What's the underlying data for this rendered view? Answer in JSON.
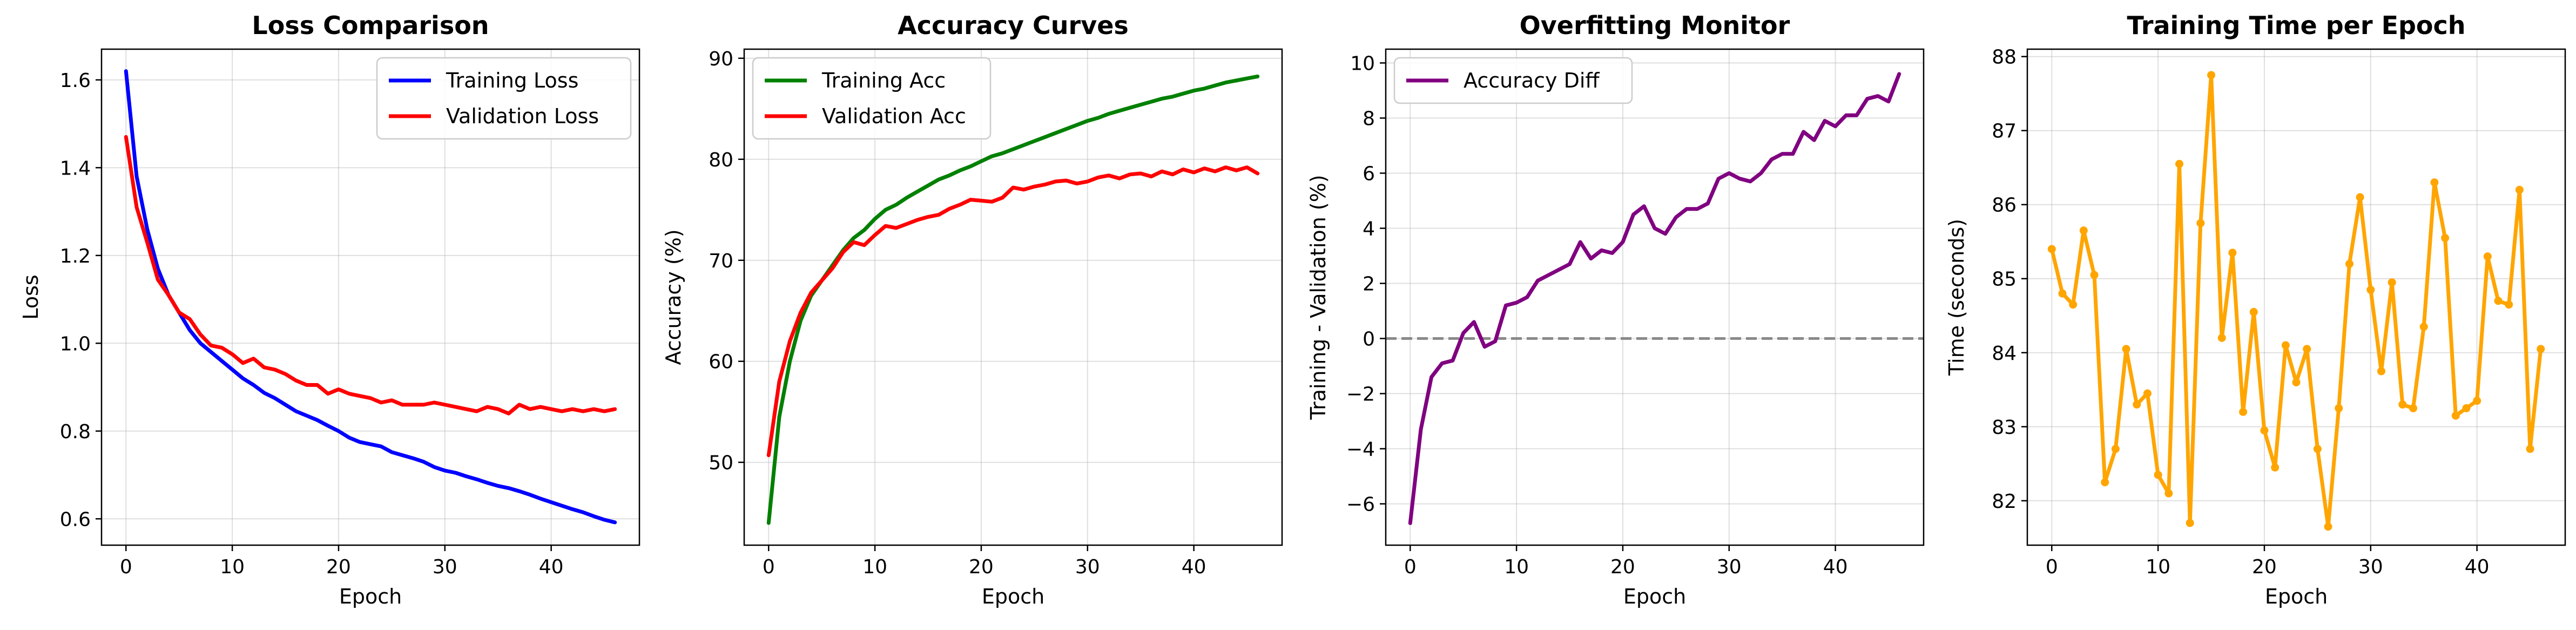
{
  "chart_data": [
    {
      "type": "line",
      "title": "Loss Comparison",
      "xlabel": "Epoch",
      "ylabel": "Loss",
      "xlim": [
        -2.3,
        48.3
      ],
      "ylim": [
        0.54,
        1.67
      ],
      "xticks": [
        0,
        10,
        20,
        30,
        40
      ],
      "yticks": [
        0.6,
        0.8,
        1.0,
        1.2,
        1.4,
        1.6
      ],
      "ytick_labels": [
        "0.6",
        "0.8",
        "1.0",
        "1.2",
        "1.4",
        "1.6"
      ],
      "grid": true,
      "legend": "upper right",
      "series": [
        {
          "name": "Training Loss",
          "color": "#0000ff",
          "values": [
            1.62,
            1.38,
            1.26,
            1.17,
            1.11,
            1.07,
            1.03,
            1.0,
            0.98,
            0.96,
            0.94,
            0.92,
            0.905,
            0.887,
            0.875,
            0.86,
            0.845,
            0.835,
            0.825,
            0.812,
            0.8,
            0.785,
            0.775,
            0.77,
            0.765,
            0.752,
            0.745,
            0.738,
            0.73,
            0.718,
            0.71,
            0.705,
            0.697,
            0.69,
            0.682,
            0.675,
            0.67,
            0.663,
            0.655,
            0.646,
            0.638,
            0.63,
            0.622,
            0.615,
            0.606,
            0.598,
            0.592
          ]
        },
        {
          "name": "Validation Loss",
          "color": "#ff0000",
          "values": [
            1.47,
            1.31,
            1.23,
            1.145,
            1.11,
            1.07,
            1.055,
            1.02,
            0.995,
            0.99,
            0.975,
            0.955,
            0.965,
            0.945,
            0.94,
            0.93,
            0.915,
            0.905,
            0.905,
            0.885,
            0.895,
            0.885,
            0.88,
            0.875,
            0.865,
            0.87,
            0.86,
            0.86,
            0.86,
            0.865,
            0.86,
            0.855,
            0.85,
            0.845,
            0.855,
            0.85,
            0.84,
            0.86,
            0.85,
            0.855,
            0.85,
            0.845,
            0.85,
            0.845,
            0.85,
            0.845,
            0.85
          ]
        }
      ]
    },
    {
      "type": "line",
      "title": "Accuracy Curves",
      "xlabel": "Epoch",
      "ylabel": "Accuracy (%)",
      "xlim": [
        -2.3,
        48.3
      ],
      "ylim": [
        41.8,
        90.9
      ],
      "xticks": [
        0,
        10,
        20,
        30,
        40
      ],
      "yticks": [
        50,
        60,
        70,
        80,
        90
      ],
      "ytick_labels": [
        "50",
        "60",
        "70",
        "80",
        "90"
      ],
      "grid": true,
      "legend": "upper left",
      "series": [
        {
          "name": "Training Acc",
          "color": "#008000",
          "values": [
            44,
            54.5,
            60,
            64,
            66.5,
            68,
            69.5,
            71,
            72.2,
            73,
            74.1,
            75,
            75.5,
            76.2,
            76.8,
            77.4,
            78,
            78.4,
            78.9,
            79.3,
            79.8,
            80.3,
            80.6,
            81,
            81.4,
            81.8,
            82.2,
            82.6,
            83,
            83.4,
            83.8,
            84.1,
            84.5,
            84.8,
            85.1,
            85.4,
            85.7,
            86,
            86.2,
            86.5,
            86.8,
            87,
            87.3,
            87.6,
            87.8,
            88,
            88.2
          ]
        },
        {
          "name": "Validation Acc",
          "color": "#ff0000",
          "values": [
            50.7,
            58,
            62,
            64.8,
            66.8,
            68,
            69.2,
            70.8,
            71.8,
            71.5,
            72.5,
            73.4,
            73.2,
            73.6,
            74,
            74.3,
            74.5,
            75.1,
            75.5,
            76,
            75.9,
            75.8,
            76.2,
            77.2,
            77,
            77.3,
            77.5,
            77.8,
            77.9,
            77.6,
            77.8,
            78.2,
            78.4,
            78.1,
            78.5,
            78.6,
            78.3,
            78.8,
            78.5,
            79,
            78.7,
            79.1,
            78.8,
            79.2,
            78.9,
            79.2,
            78.6
          ]
        }
      ]
    },
    {
      "type": "line",
      "title": "Overfitting Monitor",
      "xlabel": "Epoch",
      "ylabel": "Training - Validation (%)",
      "xlim": [
        -2.3,
        48.3
      ],
      "ylim": [
        -7.5,
        10.5
      ],
      "xticks": [
        0,
        10,
        20,
        30,
        40
      ],
      "yticks": [
        -6,
        -4,
        -2,
        0,
        2,
        4,
        6,
        8,
        10
      ],
      "ytick_labels": [
        "−6",
        "−4",
        "−2",
        "0",
        "2",
        "4",
        "6",
        "8",
        "10"
      ],
      "grid": true,
      "legend": "upper left",
      "reference_line": {
        "y": 0,
        "color": "#808080",
        "style": "dashed"
      },
      "series": [
        {
          "name": "Accuracy Diff",
          "color": "#800080",
          "values": [
            -6.7,
            -3.3,
            -1.4,
            -0.9,
            -0.8,
            0.2,
            0.6,
            -0.3,
            -0.1,
            1.2,
            1.3,
            1.5,
            2.1,
            2.3,
            2.5,
            2.7,
            3.5,
            2.9,
            3.2,
            3.1,
            3.5,
            4.5,
            4.8,
            4.0,
            3.8,
            4.4,
            4.7,
            4.7,
            4.9,
            5.8,
            6.0,
            5.8,
            5.7,
            6.0,
            6.5,
            6.7,
            6.7,
            7.5,
            7.2,
            7.9,
            7.7,
            8.1,
            8.1,
            8.7,
            8.8,
            8.6,
            9.6
          ]
        }
      ]
    },
    {
      "type": "line",
      "title": "Training Time per Epoch",
      "xlabel": "Epoch",
      "ylabel": "Time (seconds)",
      "xlim": [
        -2.3,
        48.3
      ],
      "ylim": [
        81.4,
        88.1
      ],
      "xticks": [
        0,
        10,
        20,
        30,
        40
      ],
      "yticks": [
        82,
        83,
        84,
        85,
        86,
        87,
        88
      ],
      "ytick_labels": [
        "82",
        "83",
        "84",
        "85",
        "86",
        "87",
        "88"
      ],
      "grid": true,
      "markers": true,
      "series": [
        {
          "color": "#ffa500",
          "values": [
            85.4,
            84.8,
            84.65,
            85.65,
            85.05,
            82.25,
            82.7,
            84.05,
            83.3,
            83.45,
            82.35,
            82.1,
            86.55,
            81.7,
            85.75,
            87.75,
            84.2,
            85.35,
            83.2,
            84.55,
            82.95,
            82.45,
            84.1,
            83.6,
            84.05,
            82.7,
            81.65,
            83.25,
            85.2,
            86.1,
            84.85,
            83.75,
            84.95,
            83.3,
            83.25,
            84.35,
            86.3,
            85.55,
            83.15,
            83.25,
            83.35,
            85.3,
            84.7,
            84.65,
            86.2,
            82.7,
            84.05
          ]
        }
      ]
    }
  ]
}
